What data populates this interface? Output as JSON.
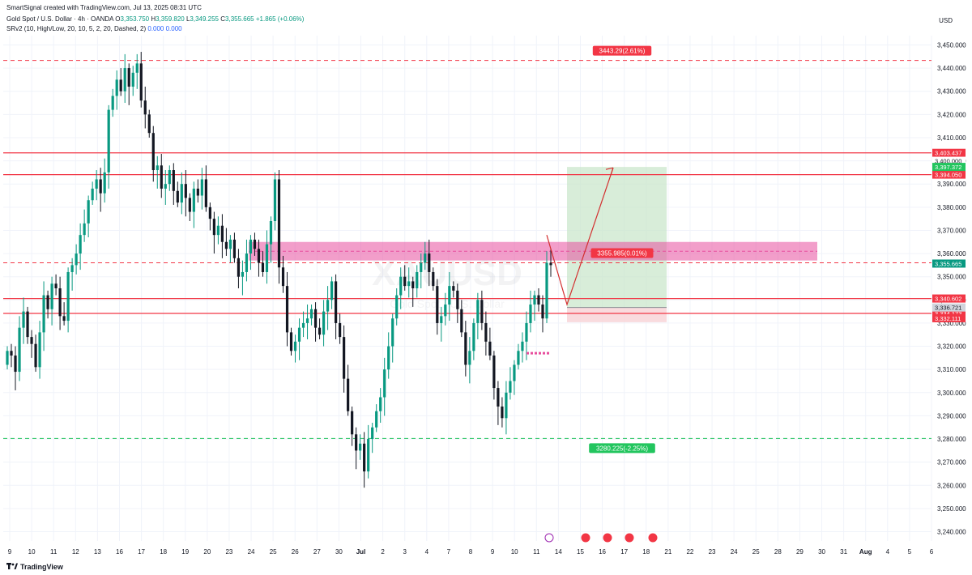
{
  "header": {
    "credit": "SmartSignal created with TradingView.com, Jul 13, 2025 08:31 UTC",
    "symbol_title": "Gold Spot / U.S. Dollar · 4h · OANDA",
    "ohlc": {
      "o_label": "O",
      "o": "3,353.750",
      "h_label": "H",
      "h": "3,359.820",
      "l_label": "L",
      "l": "3,349.255",
      "c_label": "C",
      "c": "3,355.665",
      "change": "+1.865 (+0.06%)"
    },
    "indicator": {
      "name": "SRv2 (10, High/Low, 20, 10, 5, 2, 20, Dashed, 2)",
      "val1": "0.000",
      "val2": "0.000"
    }
  },
  "currency": "USD",
  "footer": {
    "brand": "TradingView"
  },
  "watermark": {
    "symbol": "XAUUSD",
    "subtitle": "Gold Spot / U.S. Dollar"
  },
  "colors": {
    "up": "#089981",
    "down": "#131722",
    "resistance": "#f23645",
    "support": "#22c55e",
    "zone": "#e84f9e",
    "tp_box": "#c8e6c9",
    "sl_box": "#f8d7da",
    "projection": "#d32f2f"
  },
  "chart_data": {
    "type": "candlestick",
    "timeframe": "4h",
    "ylim": [
      3236,
      3454
    ],
    "x_tick_labels": [
      "9",
      "10",
      "11",
      "12",
      "13",
      "16",
      "17",
      "18",
      "19",
      "20",
      "23",
      "24",
      "25",
      "26",
      "27",
      "30",
      "Jul",
      "2",
      "3",
      "4",
      "7",
      "8",
      "9",
      "10",
      "11",
      "14",
      "15",
      "16",
      "17",
      "18",
      "21",
      "22",
      "23",
      "24",
      "25",
      "28",
      "29",
      "30",
      "31",
      "Aug",
      "4",
      "5",
      "6"
    ],
    "y_tick_labels": [
      "3,450.000",
      "3,440.000",
      "3,430.000",
      "3,420.000",
      "3,410.000",
      "3,400.000",
      "3,390.000",
      "3,380.000",
      "3,370.000",
      "3,360.000",
      "3,350.000",
      "3,340.000",
      "3,330.000",
      "3,320.000",
      "3,310.000",
      "3,300.000",
      "3,290.000",
      "3,280.000",
      "3,270.000",
      "3,260.000",
      "3,250.000",
      "3,240.000"
    ],
    "candle_closes": [
      3318,
      3316,
      3309,
      3328,
      3335,
      3324,
      3321,
      3311,
      3326,
      3342,
      3336,
      3347,
      3345,
      3333,
      3331,
      3352,
      3355,
      3360,
      3368,
      3373,
      3383,
      3388,
      3392,
      3386,
      3395,
      3422,
      3428,
      3435,
      3430,
      3440,
      3432,
      3438,
      3442,
      3426,
      3420,
      3412,
      3396,
      3398,
      3388,
      3390,
      3396,
      3387,
      3382,
      3390,
      3384,
      3378,
      3388,
      3385,
      3392,
      3380,
      3375,
      3368,
      3372,
      3365,
      3362,
      3366,
      3358,
      3350,
      3352,
      3360,
      3366,
      3362,
      3356,
      3352,
      3364,
      3374,
      3392,
      3354,
      3346,
      3326,
      3318,
      3322,
      3328,
      3330,
      3332,
      3336,
      3328,
      3325,
      3335,
      3340,
      3348,
      3330,
      3324,
      3306,
      3292,
      3282,
      3275,
      3278,
      3266,
      3280,
      3285,
      3292,
      3298,
      3310,
      3320,
      3332,
      3342,
      3350,
      3346,
      3348,
      3345,
      3352,
      3356,
      3360,
      3352,
      3346,
      3330,
      3333,
      3338,
      3346,
      3344,
      3336,
      3326,
      3312,
      3318,
      3330,
      3340,
      3330,
      3322,
      3316,
      3302,
      3294,
      3289,
      3300,
      3305,
      3312,
      3318,
      3322,
      3330,
      3338,
      3342,
      3338,
      3332,
      3356,
      3355
    ],
    "candle_opens": [
      3312,
      3318,
      3316,
      3309,
      3328,
      3335,
      3324,
      3321,
      3311,
      3326,
      3342,
      3336,
      3347,
      3345,
      3333,
      3331,
      3352,
      3355,
      3360,
      3368,
      3373,
      3383,
      3388,
      3392,
      3386,
      3395,
      3422,
      3428,
      3435,
      3430,
      3440,
      3432,
      3438,
      3442,
      3426,
      3420,
      3412,
      3396,
      3398,
      3388,
      3390,
      3396,
      3387,
      3382,
      3390,
      3384,
      3378,
      3388,
      3385,
      3392,
      3380,
      3375,
      3368,
      3372,
      3365,
      3362,
      3366,
      3358,
      3350,
      3352,
      3360,
      3366,
      3362,
      3356,
      3352,
      3364,
      3374,
      3392,
      3354,
      3346,
      3326,
      3318,
      3322,
      3328,
      3330,
      3332,
      3336,
      3328,
      3325,
      3335,
      3340,
      3348,
      3330,
      3324,
      3306,
      3292,
      3282,
      3275,
      3278,
      3266,
      3280,
      3285,
      3292,
      3298,
      3310,
      3320,
      3332,
      3342,
      3350,
      3346,
      3348,
      3345,
      3352,
      3356,
      3360,
      3352,
      3346,
      3330,
      3333,
      3338,
      3346,
      3344,
      3336,
      3326,
      3312,
      3318,
      3330,
      3340,
      3330,
      3322,
      3316,
      3302,
      3294,
      3289,
      3300,
      3305,
      3312,
      3318,
      3322,
      3330,
      3338,
      3342,
      3338,
      3332,
      3356
    ],
    "levels": [
      {
        "name": "upper target dashed",
        "price": 3443.29,
        "label": "3443.29(2.61%)",
        "style": "dashed",
        "color": "#f23645"
      },
      {
        "name": "resistance 1",
        "price": 3403.437,
        "label": "3,403.437",
        "style": "solid",
        "color": "#f23645"
      },
      {
        "name": "resistance 2",
        "price": 3394.05,
        "label": "3,394.050",
        "style": "solid",
        "color": "#f23645"
      },
      {
        "name": "entry dashed",
        "price": 3355.985,
        "label": "3355.985(0.01%)",
        "style": "dashed",
        "color": "#f23645"
      },
      {
        "name": "support 1",
        "price": 3340.602,
        "label": "3,340.602",
        "style": "solid",
        "color": "#f23645"
      },
      {
        "name": "support 2",
        "price": 3334.173,
        "label": "3,334.173",
        "style": "solid",
        "color": "#f23645"
      },
      {
        "name": "lower target dashed",
        "price": 3280.225,
        "label": "3280.225(-2.25%)",
        "style": "dashed",
        "color": "#22c55e"
      }
    ],
    "price_badges": [
      {
        "label": "3,400.000",
        "price": 3400.0,
        "color": "#ffffff",
        "text": "#131722"
      },
      {
        "label": "3,397.372",
        "price": 3397.372,
        "color": "#22c55e",
        "text": "#ffffff"
      },
      {
        "label": "3,355.665",
        "price": 3355.665,
        "color": "#089981",
        "text": "#ffffff"
      },
      {
        "label": "3,336.721",
        "price": 3336.721,
        "color": "#d1d4dc",
        "text": "#131722"
      },
      {
        "label": "3,332.111",
        "price": 3332.111,
        "color": "#f23645",
        "text": "#ffffff"
      }
    ],
    "supply_zone": {
      "top": 3365,
      "bottom": 3357,
      "mid": 3361
    },
    "position": {
      "entry": 3336.721,
      "take_profit": 3397.372,
      "stop_loss": 3332.111
    },
    "projection_path": [
      3368,
      3338,
      3397
    ]
  }
}
